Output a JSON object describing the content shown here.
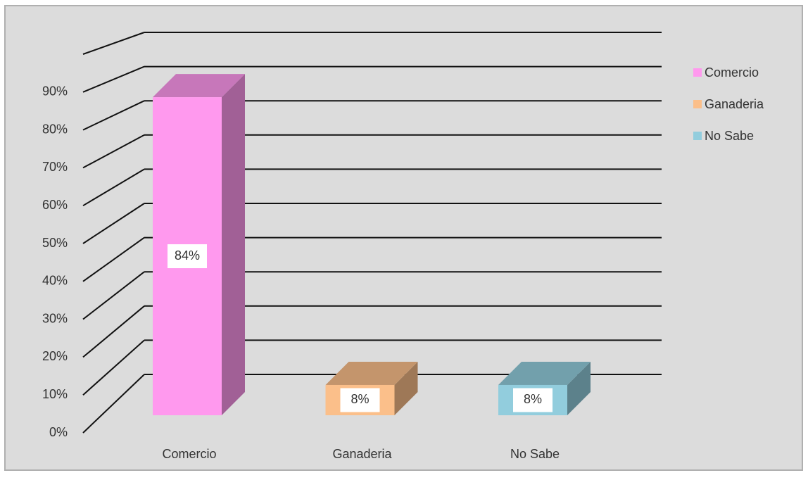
{
  "chart_data": {
    "type": "bar3d",
    "categories": [
      "Comercio",
      "Ganaderia",
      "No Sabe"
    ],
    "values": [
      84,
      8,
      8
    ],
    "value_labels": [
      "84%",
      "8%",
      "8%"
    ],
    "colors": [
      "#ff99ee",
      "#fbbf8a",
      "#92cddd"
    ],
    "ylim": [
      0,
      100
    ],
    "yticks": [
      {
        "value": 0,
        "label": "0%"
      },
      {
        "value": 10,
        "label": "10%"
      },
      {
        "value": 20,
        "label": "20%"
      },
      {
        "value": 30,
        "label": "30%"
      },
      {
        "value": 40,
        "label": "40%"
      },
      {
        "value": 50,
        "label": "50%"
      },
      {
        "value": 60,
        "label": "60%"
      },
      {
        "value": 70,
        "label": "70%"
      },
      {
        "value": 80,
        "label": "80%"
      },
      {
        "value": 90,
        "label": "90%"
      }
    ],
    "grid": true,
    "legend": "right"
  }
}
